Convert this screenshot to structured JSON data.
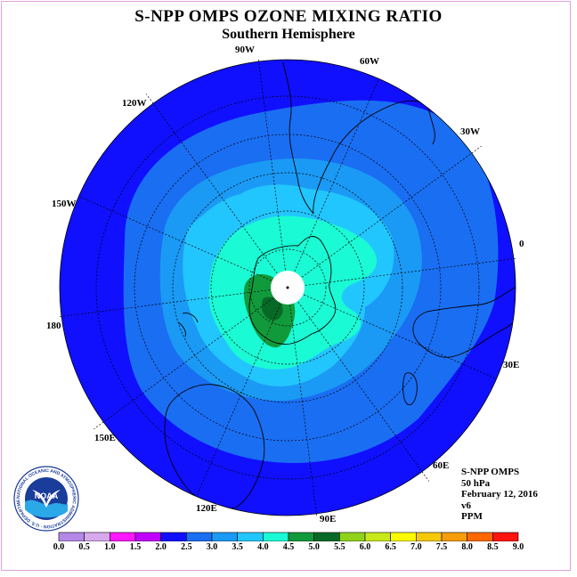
{
  "title": "S-NPP OMPS OZONE MIXING RATIO",
  "subtitle": "Southern Hemisphere",
  "longitude_labels": [
    "90W",
    "60W",
    "30W",
    "0",
    "30E",
    "60E",
    "90E",
    "120E",
    "150E",
    "180",
    "150W",
    "120W"
  ],
  "info": {
    "instrument": "S-NPP OMPS",
    "level": "50 hPa",
    "date": "February 12, 2016",
    "version": "v6",
    "units": "PPM"
  },
  "logo": {
    "text": "NOAA",
    "ring_text": "NATIONAL OCEANIC AND ATMOSPHERIC ADMINISTRATION · U.S. DEPARTMENT OF COMMERCE"
  },
  "colorbar": {
    "labels": [
      "0.0",
      "0.5",
      "1.0",
      "1.5",
      "2.0",
      "2.5",
      "3.0",
      "3.5",
      "4.0",
      "4.5",
      "5.0",
      "5.5",
      "6.0",
      "6.5",
      "7.0",
      "7.5",
      "8.0",
      "8.5",
      "9.0"
    ],
    "colors": [
      "#b388e8",
      "#d8a8ec",
      "#ff18ff",
      "#c000ff",
      "#1010ff",
      "#1a6ef2",
      "#1a9af5",
      "#22c6ff",
      "#1afad4",
      "#119a3c",
      "#066a26",
      "#90d21a",
      "#c8e81a",
      "#fafa00",
      "#f6c80a",
      "#f69c0a",
      "#ff6800",
      "#ff1410",
      "#8a5a44"
    ]
  },
  "colors": {
    "ocean_outer": "#1010ff",
    "level_2_5": "#1a6ef2",
    "level_3_0": "#1a9af5",
    "level_3_5": "#22c6ff",
    "level_4_0": "#1afad4",
    "level_4_5": "#119a3c",
    "level_5_0": "#066a26",
    "frame": "#e0a0e0"
  }
}
